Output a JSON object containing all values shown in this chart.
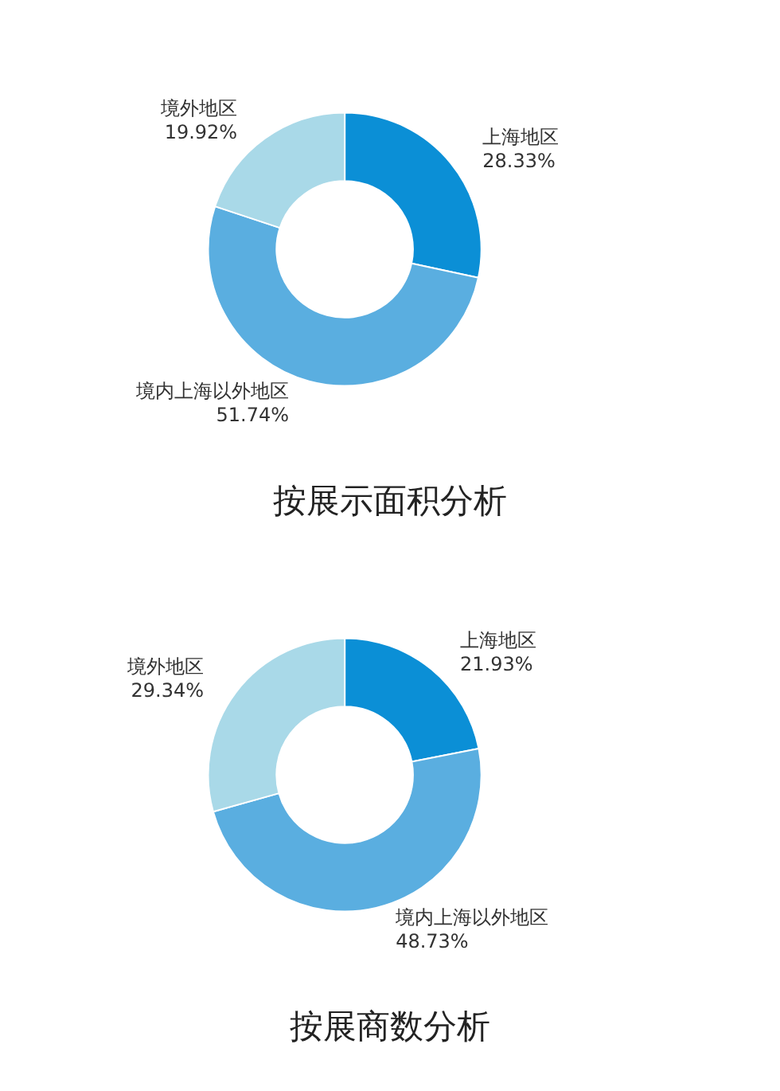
{
  "chart_data": [
    {
      "type": "donut",
      "title": "按展示面积分析",
      "categories": [
        "上海地区",
        "境内上海以外地区",
        "境外地区"
      ],
      "values": [
        28.33,
        51.74,
        19.92
      ],
      "value_labels": [
        "28.33%",
        "51.74%",
        "19.92%"
      ],
      "colors": [
        "#0b8fd6",
        "#5aaee0",
        "#a9d9e8"
      ]
    },
    {
      "type": "donut",
      "title": "按展商数分析",
      "categories": [
        "上海地区",
        "境内上海以外地区",
        "境外地区"
      ],
      "values": [
        21.93,
        48.73,
        29.34
      ],
      "value_labels": [
        "21.93%",
        "48.73%",
        "29.34%"
      ],
      "colors": [
        "#0b8fd6",
        "#5aaee0",
        "#a9d9e8"
      ]
    }
  ]
}
